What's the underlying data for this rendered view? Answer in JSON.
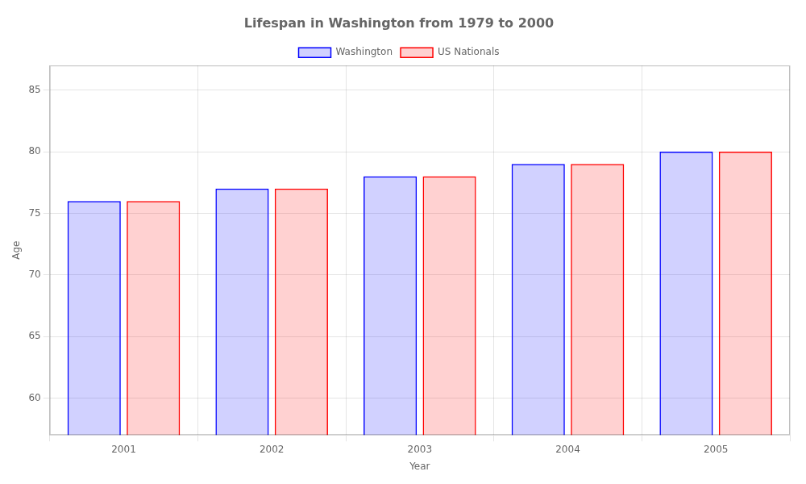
{
  "chart_data": {
    "type": "bar",
    "title": "Lifespan in Washington from 1979 to 2000",
    "x_label": "Year",
    "y_label": "Age",
    "categories": [
      "2001",
      "2002",
      "2003",
      "2004",
      "2005"
    ],
    "series": [
      {
        "name": "Washington",
        "color": "#0000ff",
        "values": [
          76,
          77,
          78,
          79,
          80
        ]
      },
      {
        "name": "US Nationals",
        "color": "#ff0000",
        "values": [
          76,
          77,
          78,
          79,
          80
        ]
      }
    ],
    "ylim": [
      57,
      87
    ],
    "yticks": [
      60,
      65,
      70,
      75,
      80,
      85
    ],
    "grid": true,
    "legend": "top"
  }
}
